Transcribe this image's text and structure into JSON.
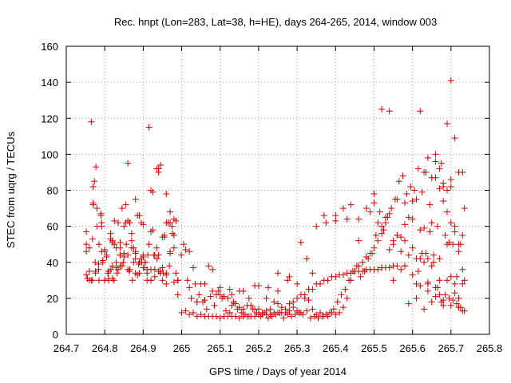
{
  "chart_data": {
    "type": "scatter",
    "title": "Rec. hnpt (Lon=283, Lat=38, h=HE), days 264-265, 2014, window 003",
    "xlabel": "GPS time / Days of year 2014",
    "ylabel": "STEC from uqrg / TECUs",
    "xlim": [
      264.7,
      265.8
    ],
    "ylim": [
      0,
      160
    ],
    "xticks": [
      264.7,
      264.8,
      264.9,
      265,
      265.1,
      265.2,
      265.3,
      265.4,
      265.5,
      265.6,
      265.7,
      265.8
    ],
    "xtick_labels": [
      "264.7",
      "264.8",
      "264.9",
      "265",
      "265.1",
      "265.2",
      "265.3",
      "265.4",
      "265.5",
      "265.6",
      "265.7",
      "265.8"
    ],
    "yticks": [
      0,
      20,
      40,
      60,
      80,
      100,
      120,
      140,
      160
    ],
    "ytick_labels": [
      "0",
      "20",
      "40",
      "60",
      "80",
      "100",
      "120",
      "140",
      "160"
    ],
    "grid": true,
    "marker": "+",
    "color": "#cc0000",
    "series": [
      {
        "name": "STEC",
        "x": [
          264.752,
          264.752,
          264.755,
          264.76,
          264.765,
          264.765,
          264.77,
          264.77,
          264.773,
          264.777,
          264.78,
          264.785,
          264.79,
          264.792,
          264.795,
          264.8,
          264.805,
          264.81,
          264.815,
          264.82,
          264.825,
          264.83,
          264.835,
          264.84,
          264.845,
          264.85,
          264.855,
          264.86,
          264.865,
          264.87,
          264.875,
          264.88,
          264.885,
          264.89,
          264.895,
          264.9,
          264.905,
          264.91,
          264.915,
          264.92,
          264.925,
          264.93,
          264.935,
          264.94,
          264.945,
          264.95,
          264.955,
          264.96,
          264.965,
          264.97,
          264.975,
          264.98,
          264.985,
          264.99,
          264.752,
          264.76,
          264.768,
          264.776,
          264.784,
          264.792,
          264.8,
          264.81,
          264.82,
          264.83,
          264.84,
          264.85,
          264.86,
          264.87,
          264.88,
          264.89,
          264.9,
          264.91,
          264.92,
          264.93,
          264.94,
          264.95,
          264.96,
          264.97,
          264.98,
          264.99,
          264.752,
          264.76,
          264.768,
          264.776,
          264.784,
          264.792,
          264.8,
          264.808,
          264.816,
          264.824,
          264.832,
          264.84,
          264.848,
          264.856,
          264.864,
          264.872,
          264.88,
          264.888,
          264.896,
          264.904,
          264.912,
          264.92,
          264.928,
          264.936,
          264.944,
          264.952,
          264.96,
          264.968,
          264.976,
          264.985,
          264.77,
          264.78,
          264.79,
          264.8,
          264.81,
          264.82,
          264.83,
          264.84,
          264.85,
          264.86,
          264.87,
          264.88,
          264.89,
          264.9,
          264.91,
          264.92,
          264.93,
          264.94,
          264.95,
          264.96,
          264.97,
          264.98,
          264.775,
          264.785,
          264.795,
          264.805,
          264.815,
          264.825,
          264.835,
          264.845,
          264.855,
          264.865,
          264.875,
          264.885,
          264.895,
          264.905,
          264.915,
          264.925,
          264.935,
          264.945,
          264.955,
          264.97,
          264.82,
          264.84,
          264.86,
          264.88,
          264.9,
          264.92,
          264.94,
          264.96,
          264.98,
          264.99,
          264.999,
          265.01,
          265.02,
          265.03,
          265.04,
          265.05,
          265.06,
          265.07,
          265.08,
          265.09,
          265.1,
          265.11,
          265.12,
          265.13,
          265.14,
          265.15,
          265.16,
          265.17,
          265.18,
          265.19,
          265.2,
          265.21,
          265.22,
          265.23,
          265.24,
          265.25,
          265.26,
          265.27,
          265.28,
          265.29,
          265.3,
          265.31,
          265.32,
          265.33,
          265.34,
          265.35,
          265.36,
          265.37,
          265.38,
          265.39,
          265.4,
          265.41,
          265.42,
          265.43,
          265.44,
          265.45,
          265.46,
          265.47,
          265.48,
          265.49,
          265.5,
          265.51,
          265.52,
          265.53,
          265.54,
          265.55,
          265.56,
          265.57,
          265.58,
          265.59,
          265.6,
          265.61,
          265.62,
          265.63,
          265.64,
          265.65,
          265.66,
          265.67,
          265.68,
          265.69,
          265.7,
          265.71,
          265.72,
          265.73,
          265.005,
          265.015,
          265.025,
          265.035,
          265.045,
          265.055,
          265.065,
          265.075,
          265.085,
          265.095,
          265.105,
          265.115,
          265.125,
          265.135,
          265.145,
          265.155,
          265.165,
          265.175,
          265.185,
          265.195,
          265.205,
          265.215,
          265.225,
          265.235,
          265.245,
          265.255,
          265.265,
          265.275,
          265.285,
          265.295,
          265.305,
          265.315,
          265.325,
          265.335,
          265.345,
          265.355,
          265.365,
          265.375,
          265.385,
          265.395,
          265.405,
          265.415,
          265.425,
          265.435,
          265.445,
          265.455,
          265.465,
          265.475,
          265.485,
          265.495,
          265.505,
          265.515,
          265.525,
          265.535,
          265.545,
          265.555,
          265.565,
          265.575,
          265.585,
          265.595,
          265.605,
          265.615,
          265.625,
          265.635,
          265.645,
          265.655,
          265.665,
          265.675,
          265.685,
          265.695,
          265.705,
          265.715,
          265.725,
          265.735,
          265.0,
          265.02,
          265.04,
          265.06,
          265.08,
          265.1,
          265.12,
          265.14,
          265.16,
          265.18,
          265.2,
          265.22,
          265.24,
          265.26,
          265.28,
          265.3,
          265.32,
          265.34,
          265.36,
          265.38,
          265.4,
          265.42,
          265.44,
          265.46,
          265.48,
          265.5,
          265.52,
          265.54,
          265.56,
          265.58,
          265.6,
          265.62,
          265.64,
          265.66,
          265.68,
          265.7,
          265.72,
          265.73,
          265.01,
          265.03,
          265.05,
          265.07,
          265.09,
          265.11,
          265.13,
          265.15,
          265.17,
          265.19,
          265.21,
          265.23,
          265.25,
          265.27,
          265.29,
          265.31,
          265.33,
          265.35,
          265.37,
          265.39,
          265.41,
          265.43,
          265.45,
          265.47,
          265.49,
          265.51,
          265.53,
          265.55,
          265.57,
          265.59,
          265.61,
          265.63,
          265.65,
          265.67,
          265.69,
          265.71,
          265.73,
          265.125,
          265.15,
          265.175,
          265.2,
          265.225,
          265.25,
          265.275,
          265.3,
          265.325,
          265.35,
          265.375,
          265.4,
          265.42,
          265.44,
          265.46,
          265.48,
          265.5,
          265.52,
          265.54,
          265.56,
          265.58,
          265.6,
          265.62,
          265.64,
          265.66,
          265.68,
          265.7,
          265.72,
          265.735,
          265.02,
          265.04,
          265.06,
          265.08,
          265.1,
          265.13,
          265.16,
          265.19,
          265.22,
          265.25,
          265.28,
          265.31,
          265.34,
          265.37,
          265.4,
          265.43,
          265.46,
          265.49,
          265.52,
          265.55,
          265.58,
          265.61,
          265.64,
          265.67,
          265.7,
          265.72,
          265.5,
          265.52,
          265.54,
          265.56,
          265.58,
          265.6,
          265.615,
          265.625,
          265.635,
          265.645,
          265.655,
          265.665,
          265.675,
          265.685,
          265.695,
          265.705,
          265.715,
          265.725,
          265.735,
          265.51,
          265.53,
          265.55,
          265.57,
          265.59,
          265.61,
          265.63,
          265.65,
          265.67,
          265.69,
          265.71,
          265.73,
          265.64,
          265.66,
          265.68,
          265.69,
          265.7,
          265.71,
          265.72,
          265.7,
          265.68,
          265.66,
          265.62,
          265.63,
          265.65,
          265.67,
          265.69,
          265.71,
          265.73
        ],
        "y": [
          57,
          50,
          31,
          48,
          118,
          30,
          72,
          82,
          85,
          93,
          60,
          30,
          66,
          62,
          40,
          47,
          43,
          31,
          53,
          52,
          63,
          40,
          36,
          44,
          70,
          60,
          62,
          36,
          62,
          48,
          40,
          46,
          66,
          66,
          62,
          44,
          40,
          36,
          115,
          80,
          79,
          32,
          48,
          92,
          94,
          30,
          54,
          78,
          62,
          62,
          60,
          55,
          63,
          30,
          46,
          35,
          53,
          34,
          39,
          46,
          30,
          30,
          31,
          48,
          38,
          43,
          44,
          56,
          45,
          34,
          61,
          34,
          30,
          36,
          44,
          54,
          33,
          46,
          64,
          30,
          33,
          30,
          30,
          35,
          36,
          60,
          30,
          34,
          36,
          30,
          34,
          44,
          40,
          50,
          35,
          30,
          42,
          39,
          40,
          37,
          44,
          30,
          44,
          42,
          35,
          34,
          34,
          38,
          56,
          34,
          73,
          70,
          67,
          46,
          35,
          51,
          37,
          51,
          45,
          95,
          52,
          75,
          40,
          43,
          30,
          57,
          44,
          90,
          37,
          62,
          45,
          29,
          40,
          50,
          41,
          44,
          56,
          50,
          62,
          38,
          72,
          36,
          48,
          33,
          42,
          40,
          50,
          58,
          92,
          34,
          55,
          68,
          38,
          48,
          63,
          34,
          37,
          36,
          35,
          28,
          48,
          22,
          44,
          47,
          46,
          37,
          18,
          28,
          19,
          38,
          36,
          22,
          22,
          21,
          20,
          16,
          17,
          15,
          14,
          16,
          16,
          14,
          14,
          12,
          13,
          14,
          18,
          17,
          12,
          12,
          13,
          15,
          13,
          12,
          20,
          19,
          14,
          11,
          12,
          10,
          10,
          12,
          11,
          12,
          15,
          20,
          30,
          35,
          38,
          40,
          43,
          45,
          48,
          52,
          56,
          62,
          67,
          52,
          55,
          54,
          61,
          65,
          74,
          75,
          58,
          59,
          42,
          62,
          100,
          81,
          84,
          80,
          82,
          28,
          46,
          36,
          50,
          30,
          20,
          28,
          22,
          18,
          14,
          21,
          16,
          24,
          20,
          13,
          12,
          18,
          14,
          12,
          11,
          10,
          14,
          12,
          10,
          12,
          9,
          10,
          11,
          12,
          9,
          11,
          10,
          11,
          12,
          11,
          13,
          9,
          10,
          9,
          10,
          11,
          12,
          14,
          18,
          22,
          25,
          30,
          35,
          38,
          32,
          35,
          42,
          45,
          55,
          68,
          58,
          65,
          70,
          75,
          85,
          88,
          78,
          82,
          80,
          92,
          79,
          90,
          72,
          40,
          26,
          18,
          22,
          20,
          19,
          17,
          15,
          13,
          12,
          11,
          10,
          10,
          10,
          9,
          10,
          10,
          10,
          10,
          11,
          11,
          12,
          15,
          17,
          20,
          22,
          25,
          28,
          30,
          32,
          33,
          34,
          35,
          36,
          36,
          37,
          37,
          38,
          38,
          33,
          27,
          24,
          21,
          19,
          16,
          15,
          13,
          13,
          12,
          11,
          10,
          10,
          10,
          10,
          9,
          10,
          10,
          11,
          11,
          12,
          14,
          18,
          22,
          25,
          28,
          30,
          32,
          33,
          34,
          35,
          35,
          36,
          36,
          37,
          38,
          36,
          17,
          20,
          14,
          18,
          22,
          30,
          23,
          28,
          25,
          24,
          20,
          27,
          26,
          34,
          30,
          28,
          42,
          60,
          62,
          66,
          70,
          72,
          64,
          70,
          78,
          125,
          124,
          75,
          73,
          48,
          42,
          29,
          26,
          16,
          32,
          20,
          30,
          26,
          18,
          28,
          24,
          26,
          22,
          24,
          27,
          20,
          24,
          32,
          51,
          34,
          66,
          63,
          64,
          52,
          68,
          37,
          30,
          38,
          28,
          28,
          30,
          62,
          50,
          73,
          60,
          47,
          55,
          52,
          64,
          35,
          45,
          45,
          57,
          44,
          60,
          95,
          55,
          51,
          50,
          32,
          50,
          70,
          62,
          65,
          50,
          46,
          44,
          42,
          40,
          38,
          42,
          50,
          57,
          90,
          98,
          87,
          82,
          117,
          141,
          109,
          90,
          86,
          74,
          96,
          124,
          90,
          87,
          92,
          68,
          60,
          55
        ]
      }
    ]
  }
}
